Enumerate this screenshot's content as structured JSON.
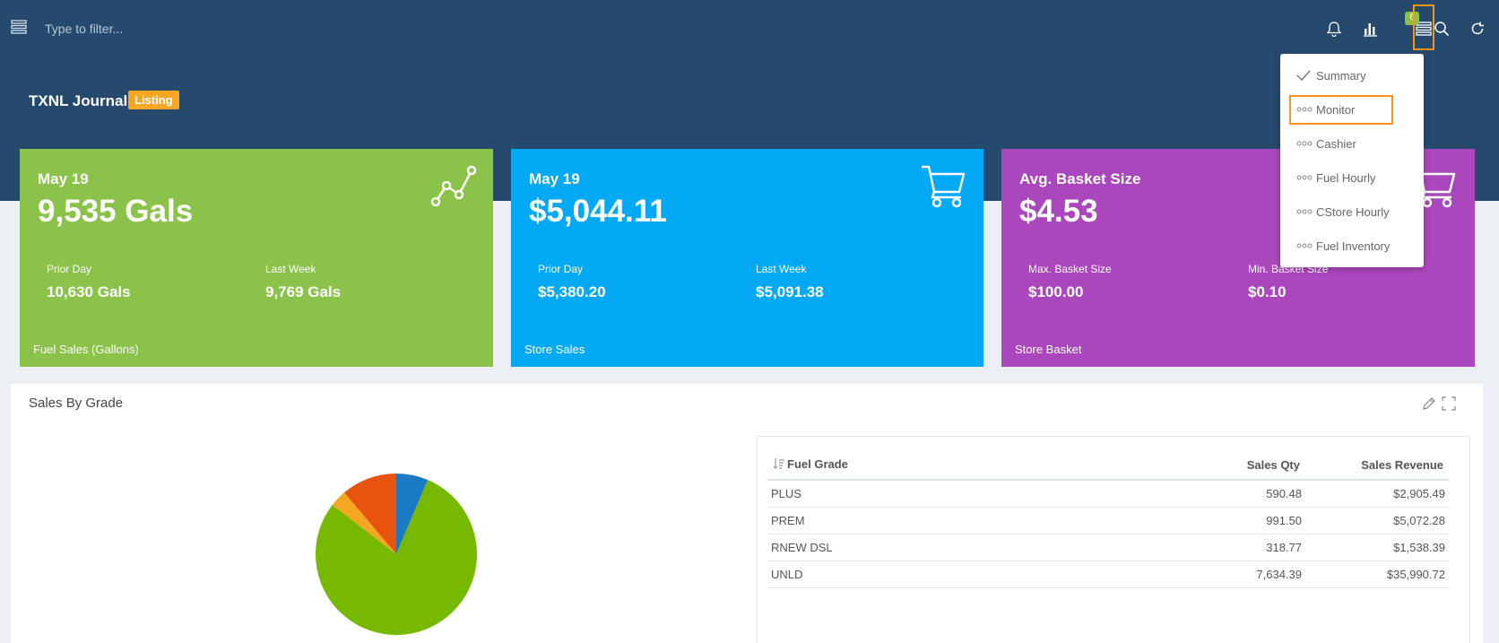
{
  "topbar": {
    "filter_placeholder": "Type to filter...",
    "badge_count": "6"
  },
  "header": {
    "title": "TXNL Journal",
    "badge": "Listing"
  },
  "cards": [
    {
      "top": "May 19",
      "value": "9,535 Gals",
      "left_label": "Prior Day",
      "left_value": "10,630 Gals",
      "right_label": "Last Week",
      "right_value": "9,769 Gals",
      "footer": "Fuel Sales (Gallons)",
      "color": "#8bc34a",
      "icon": "line-chart-icon"
    },
    {
      "top": "May 19",
      "value": "$5,044.11",
      "left_label": "Prior Day",
      "left_value": "$5,380.20",
      "right_label": "Last Week",
      "right_value": "$5,091.38",
      "footer": "Store Sales",
      "color": "#03a9f4",
      "icon": "cart-icon"
    },
    {
      "top": "Avg. Basket Size",
      "value": "$4.53",
      "left_label": "Max. Basket Size",
      "left_value": "$100.00",
      "right_label": "Min. Basket Size",
      "right_value": "$0.10",
      "footer": "Store Basket",
      "color": "#ab47bc",
      "icon": "cart-icon"
    }
  ],
  "dropdown": {
    "items": [
      {
        "label": "Summary",
        "icon": "check-icon"
      },
      {
        "label": "Monitor",
        "icon": "dots-icon"
      },
      {
        "label": "Cashier",
        "icon": "dots-icon"
      },
      {
        "label": "Fuel Hourly",
        "icon": "dots-icon"
      },
      {
        "label": "CStore Hourly",
        "icon": "dots-icon"
      },
      {
        "label": "Fuel Inventory",
        "icon": "dots-icon"
      }
    ]
  },
  "panel": {
    "title": "Sales By Grade",
    "table": {
      "headers": [
        "Fuel Grade",
        "Sales Qty",
        "Sales Revenue"
      ],
      "rows": [
        [
          "PLUS",
          "590.48",
          "$2,905.49"
        ],
        [
          "PREM",
          "991.50",
          "$5,072.28"
        ],
        [
          "RNEW DSL",
          "318.77",
          "$1,538.39"
        ],
        [
          "UNLD",
          "7,634.39",
          "$35,990.72"
        ]
      ]
    }
  },
  "chart_data": {
    "type": "pie",
    "categories": [
      "PLUS",
      "UNLD",
      "RNEW DSL",
      "PREM"
    ],
    "values": [
      2905.49,
      35990.72,
      1538.39,
      5072.28
    ],
    "colors": [
      "#1a7ac4",
      "#76b900",
      "#f5a623",
      "#e8540e"
    ]
  },
  "colors": {
    "header_bg": "#264a6e",
    "accent": "#f7941d"
  }
}
